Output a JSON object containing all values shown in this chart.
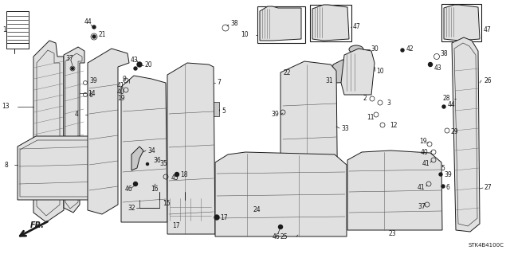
{
  "bg_color": "#ffffff",
  "diagram_code": "STK4B4100C",
  "line_color": "#1a1a1a",
  "gray_fill": "#c8c8c8",
  "light_gray": "#e0e0e0",
  "dark_gray": "#888888"
}
